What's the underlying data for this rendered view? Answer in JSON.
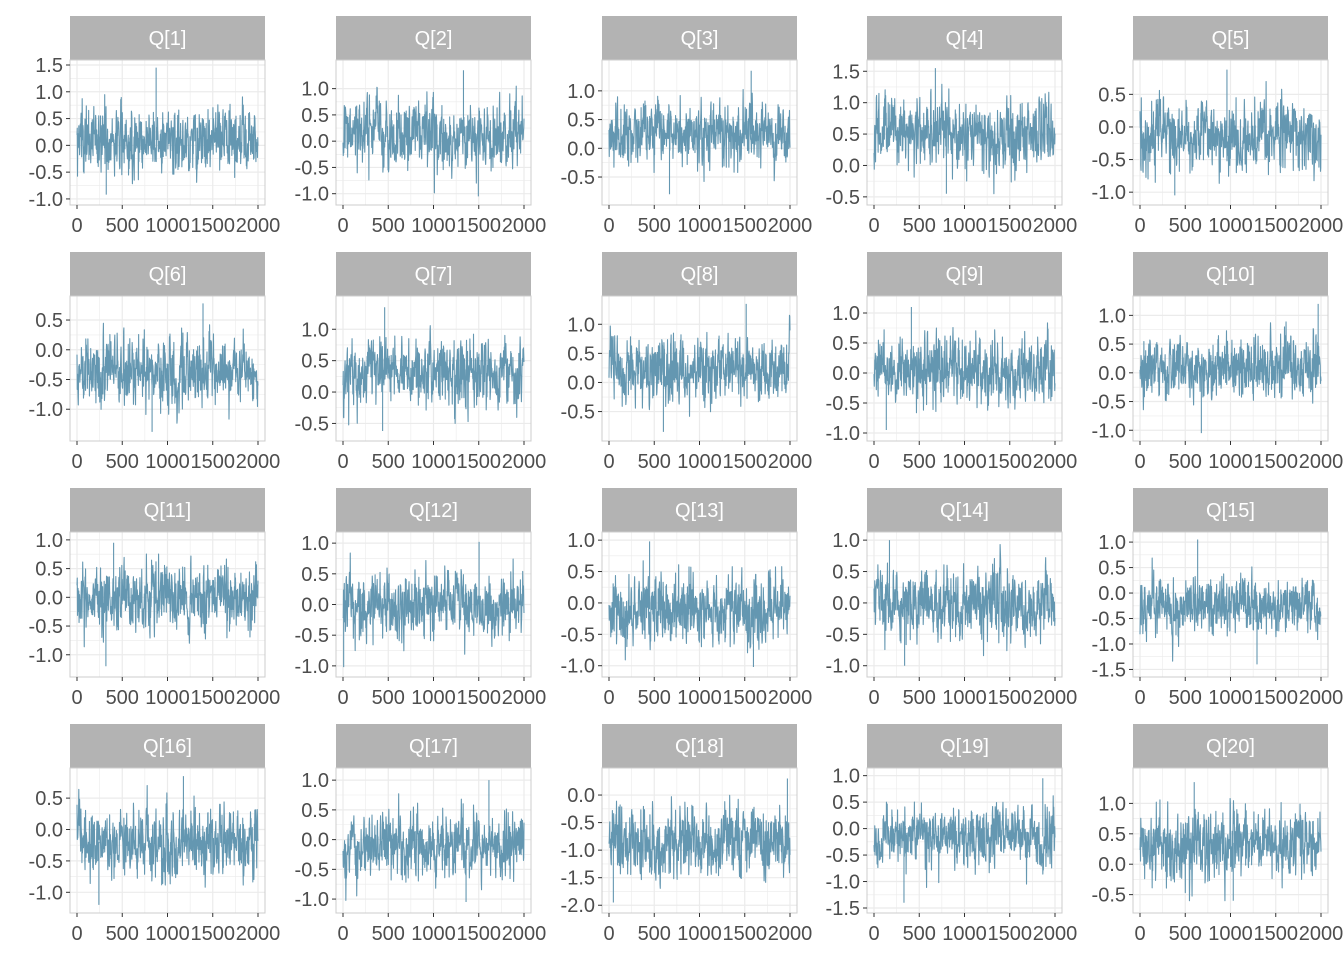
{
  "chart_data": {
    "type": "line",
    "layout": "facet-grid",
    "rows": 4,
    "cols": 5,
    "series_color": "#6497B1",
    "strip_color": "#B3B3B3",
    "panel_border_color": "#CCCCCC",
    "grid_color": "#EBEBEB",
    "x_range": [
      0,
      2000
    ],
    "x_ticks": [
      0,
      500,
      1000,
      1500,
      2000
    ],
    "x_tick_labels": [
      "0",
      "500",
      "1000",
      "1500",
      "2000"
    ],
    "panels": [
      {
        "title": "Q[1]",
        "ylim": [
          -1.02,
          1.5
        ],
        "yticks": [
          -1.0,
          -0.5,
          0.0,
          0.5,
          1.0,
          1.5
        ],
        "ytick_labels": [
          "-1.0",
          "-0.5",
          "0.0",
          "0.5",
          "1.0",
          "1.5"
        ],
        "center": 0.1,
        "spread": 0.35,
        "peak_max": 1.45,
        "peak_min": -0.92
      },
      {
        "title": "Q[2]",
        "ylim": [
          -1.12,
          1.45
        ],
        "yticks": [
          -1.0,
          -0.5,
          0.0,
          0.5,
          1.0
        ],
        "ytick_labels": [
          "-1.0",
          "-0.5",
          "0.0",
          "0.5",
          "1.0"
        ],
        "center": 0.1,
        "spread": 0.35,
        "peak_max": 1.35,
        "peak_min": -1.05
      },
      {
        "title": "Q[3]",
        "ylim": [
          -0.9,
          1.45
        ],
        "yticks": [
          -0.5,
          0.0,
          0.5,
          1.0
        ],
        "ytick_labels": [
          "-0.5",
          "0.0",
          "0.5",
          "1.0"
        ],
        "center": 0.25,
        "spread": 0.3,
        "peak_max": 1.35,
        "peak_min": -0.8
      },
      {
        "title": "Q[4]",
        "ylim": [
          -0.55,
          1.6
        ],
        "yticks": [
          -0.5,
          0.0,
          0.5,
          1.0,
          1.5
        ],
        "ytick_labels": [
          "-0.5",
          "0.0",
          "0.5",
          "1.0",
          "1.5"
        ],
        "center": 0.55,
        "spread": 0.3,
        "peak_max": 1.55,
        "peak_min": -0.45
      },
      {
        "title": "Q[5]",
        "ylim": [
          -1.12,
          0.95
        ],
        "yticks": [
          -1.0,
          -0.5,
          0.0,
          0.5
        ],
        "ytick_labels": [
          "-1.0",
          "-0.5",
          "0.0",
          "0.5"
        ],
        "center": -0.15,
        "spread": 0.3,
        "peak_max": 0.88,
        "peak_min": -1.05
      },
      {
        "title": "Q[6]",
        "ylim": [
          -1.45,
          0.82
        ],
        "yticks": [
          -1.0,
          -0.5,
          0.0,
          0.5
        ],
        "ytick_labels": [
          "-1.0",
          "-0.5",
          "0.0",
          "0.5"
        ],
        "center": -0.4,
        "spread": 0.3,
        "peak_max": 0.78,
        "peak_min": -1.38
      },
      {
        "title": "Q[7]",
        "ylim": [
          -0.7,
          1.45
        ],
        "yticks": [
          -0.5,
          0.0,
          0.5,
          1.0
        ],
        "ytick_labels": [
          "-0.5",
          "0.0",
          "0.5",
          "1.0"
        ],
        "center": 0.3,
        "spread": 0.3,
        "peak_max": 1.35,
        "peak_min": -0.62
      },
      {
        "title": "Q[8]",
        "ylim": [
          -0.92,
          1.4
        ],
        "yticks": [
          -0.5,
          0.0,
          0.5,
          1.0
        ],
        "ytick_labels": [
          "-0.5",
          "0.0",
          "0.5",
          "1.0"
        ],
        "center": 0.2,
        "spread": 0.3,
        "peak_max": 1.35,
        "peak_min": -0.85
      },
      {
        "title": "Q[9]",
        "ylim": [
          -1.05,
          1.2
        ],
        "yticks": [
          -1.0,
          -0.5,
          0.0,
          0.5,
          1.0
        ],
        "ytick_labels": [
          "-1.0",
          "-0.5",
          "0.0",
          "0.5",
          "1.0"
        ],
        "center": 0.05,
        "spread": 0.3,
        "peak_max": 1.1,
        "peak_min": -0.95
      },
      {
        "title": "Q[10]",
        "ylim": [
          -1.1,
          1.25
        ],
        "yticks": [
          -1.0,
          -0.5,
          0.0,
          0.5,
          1.0
        ],
        "ytick_labels": [
          "-1.0",
          "-0.5",
          "0.0",
          "0.5",
          "1.0"
        ],
        "center": 0.1,
        "spread": 0.3,
        "peak_max": 1.2,
        "peak_min": -1.05
      },
      {
        "title": "Q[11]",
        "ylim": [
          -1.3,
          1.05
        ],
        "yticks": [
          -1.0,
          -0.5,
          0.0,
          0.5,
          1.0
        ],
        "ytick_labels": [
          "-1.0",
          "-0.5",
          "0.0",
          "0.5",
          "1.0"
        ],
        "center": 0.0,
        "spread": 0.3,
        "peak_max": 0.95,
        "peak_min": -1.2
      },
      {
        "title": "Q[12]",
        "ylim": [
          -1.1,
          1.1
        ],
        "yticks": [
          -1.0,
          -0.5,
          0.0,
          0.5,
          1.0
        ],
        "ytick_labels": [
          "-1.0",
          "-0.5",
          "0.0",
          "0.5",
          "1.0"
        ],
        "center": 0.0,
        "spread": 0.3,
        "peak_max": 1.02,
        "peak_min": -1.02
      },
      {
        "title": "Q[13]",
        "ylim": [
          -1.1,
          1.05
        ],
        "yticks": [
          -1.0,
          -0.5,
          0.0,
          0.5,
          1.0
        ],
        "ytick_labels": [
          "-1.0",
          "-0.5",
          "0.0",
          "0.5",
          "1.0"
        ],
        "center": -0.1,
        "spread": 0.3,
        "peak_max": 0.98,
        "peak_min": -1.02
      },
      {
        "title": "Q[14]",
        "ylim": [
          -1.1,
          1.05
        ],
        "yticks": [
          -1.0,
          -0.5,
          0.0,
          0.5,
          1.0
        ],
        "ytick_labels": [
          "-1.0",
          "-0.5",
          "0.0",
          "0.5",
          "1.0"
        ],
        "center": 0.0,
        "spread": 0.3,
        "peak_max": 1.0,
        "peak_min": -1.0
      },
      {
        "title": "Q[15]",
        "ylim": [
          -1.55,
          1.1
        ],
        "yticks": [
          -1.5,
          -1.0,
          -0.5,
          0.0,
          0.5,
          1.0
        ],
        "ytick_labels": [
          "-1.5",
          "-1.0",
          "-0.5",
          "0.0",
          "0.5",
          "1.0"
        ],
        "center": -0.25,
        "spread": 0.3,
        "peak_max": 1.05,
        "peak_min": -1.4
      },
      {
        "title": "Q[16]",
        "ylim": [
          -1.25,
          0.9
        ],
        "yticks": [
          -1.0,
          -0.5,
          0.0,
          0.5
        ],
        "ytick_labels": [
          "-1.0",
          "-0.5",
          "0.0",
          "0.5"
        ],
        "center": -0.2,
        "spread": 0.3,
        "peak_max": 0.85,
        "peak_min": -1.2
      },
      {
        "title": "Q[17]",
        "ylim": [
          -1.15,
          1.12
        ],
        "yticks": [
          -1.0,
          -0.5,
          0.0,
          0.5,
          1.0
        ],
        "ytick_labels": [
          "-1.0",
          "-0.5",
          "0.0",
          "0.5",
          "1.0"
        ],
        "center": -0.1,
        "spread": 0.3,
        "peak_max": 1.0,
        "peak_min": -1.05
      },
      {
        "title": "Q[18]",
        "ylim": [
          -2.05,
          0.4
        ],
        "yticks": [
          -2.0,
          -1.5,
          -1.0,
          -0.5,
          0.0
        ],
        "ytick_labels": [
          "-2.0",
          "-1.5",
          "-1.0",
          "-0.5",
          "0.0"
        ],
        "center": -0.85,
        "spread": 0.35,
        "peak_max": 0.3,
        "peak_min": -1.95
      },
      {
        "title": "Q[19]",
        "ylim": [
          -1.5,
          1.05
        ],
        "yticks": [
          -1.5,
          -1.0,
          -0.5,
          0.0,
          0.5,
          1.0
        ],
        "ytick_labels": [
          "-1.5",
          "-1.0",
          "-0.5",
          "0.0",
          "0.5",
          "1.0"
        ],
        "center": -0.15,
        "spread": 0.3,
        "peak_max": 0.95,
        "peak_min": -1.4
      },
      {
        "title": "Q[20]",
        "ylim": [
          -0.72,
          1.5
        ],
        "yticks": [
          -0.5,
          0.0,
          0.5,
          1.0
        ],
        "ytick_labels": [
          "-0.5",
          "0.0",
          "0.5",
          "1.0"
        ],
        "center": 0.35,
        "spread": 0.3,
        "peak_max": 1.35,
        "peak_min": -0.6
      }
    ]
  }
}
